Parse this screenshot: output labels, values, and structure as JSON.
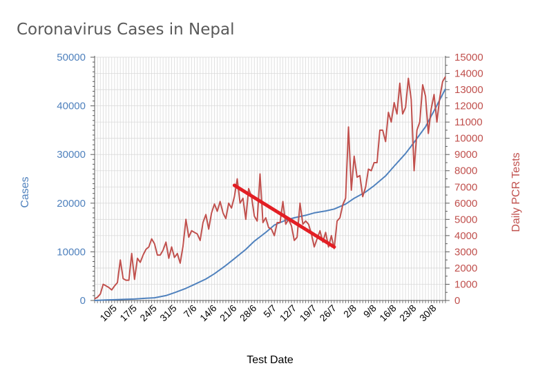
{
  "chart_data": {
    "type": "line",
    "title": "Coronavirus Cases in Nepal",
    "xlabel": "Test Date",
    "ylabel": "Cases",
    "y2label": "Daily PCR Tests",
    "ylim": [
      0,
      50000
    ],
    "y2lim": [
      0,
      15000
    ],
    "yticks": [
      "0",
      "10000",
      "20000",
      "30000",
      "40000",
      "50000"
    ],
    "y2ticks": [
      "0",
      "1000",
      "2000",
      "3000",
      "4000",
      "5000",
      "6000",
      "7000",
      "8000",
      "9000",
      "10000",
      "11000",
      "12000",
      "13000",
      "14000",
      "15000"
    ],
    "x_range": [
      "2020-05-03",
      "2020-09-03"
    ],
    "x_tick_labels": [
      {
        "date": "2020-05-10",
        "label": "10/5"
      },
      {
        "date": "2020-05-17",
        "label": "17/5"
      },
      {
        "date": "2020-05-24",
        "label": "24/5"
      },
      {
        "date": "2020-05-31",
        "label": "31/5"
      },
      {
        "date": "2020-06-07",
        "label": "7/6"
      },
      {
        "date": "2020-06-14",
        "label": "14/6"
      },
      {
        "date": "2020-06-21",
        "label": "21/6"
      },
      {
        "date": "2020-06-28",
        "label": "28/6"
      },
      {
        "date": "2020-07-05",
        "label": "5/7"
      },
      {
        "date": "2020-07-12",
        "label": "12/7"
      },
      {
        "date": "2020-07-19",
        "label": "19/7"
      },
      {
        "date": "2020-07-26",
        "label": "26/7"
      },
      {
        "date": "2020-08-02",
        "label": "2/8"
      },
      {
        "date": "2020-08-09",
        "label": "9/8"
      },
      {
        "date": "2020-08-16",
        "label": "16/8"
      },
      {
        "date": "2020-08-23",
        "label": "23/8"
      },
      {
        "date": "2020-08-30",
        "label": "30/8"
      }
    ],
    "grid": true,
    "colors": {
      "cases": "#4f81bd",
      "tests": "#c0504d",
      "trend": "#e31e24",
      "grid": "#d9d9d9",
      "axis": "#595959"
    },
    "series": [
      {
        "axis": "left",
        "color": "#4f81bd",
        "points": [
          [
            "2020-05-03",
            0
          ],
          [
            "2020-05-07",
            100
          ],
          [
            "2020-05-10",
            150
          ],
          [
            "2020-05-14",
            250
          ],
          [
            "2020-05-17",
            300
          ],
          [
            "2020-05-21",
            450
          ],
          [
            "2020-05-24",
            550
          ],
          [
            "2020-05-28",
            1000
          ],
          [
            "2020-05-31",
            1600
          ],
          [
            "2020-06-04",
            2500
          ],
          [
            "2020-06-07",
            3300
          ],
          [
            "2020-06-11",
            4400
          ],
          [
            "2020-06-14",
            5500
          ],
          [
            "2020-06-18",
            7200
          ],
          [
            "2020-06-21",
            8600
          ],
          [
            "2020-06-25",
            10500
          ],
          [
            "2020-06-28",
            12200
          ],
          [
            "2020-07-02",
            14000
          ],
          [
            "2020-07-05",
            15500
          ],
          [
            "2020-07-09",
            16500
          ],
          [
            "2020-07-12",
            17000
          ],
          [
            "2020-07-16",
            17500
          ],
          [
            "2020-07-19",
            18000
          ],
          [
            "2020-07-23",
            18400
          ],
          [
            "2020-07-26",
            18800
          ],
          [
            "2020-07-30",
            19800
          ],
          [
            "2020-08-02",
            21000
          ],
          [
            "2020-08-06",
            22300
          ],
          [
            "2020-08-09",
            23600
          ],
          [
            "2020-08-13",
            25600
          ],
          [
            "2020-08-16",
            27600
          ],
          [
            "2020-08-20",
            30200
          ],
          [
            "2020-08-23",
            32500
          ],
          [
            "2020-08-27",
            35700
          ],
          [
            "2020-08-30",
            39000
          ],
          [
            "2020-09-03",
            43500
          ]
        ]
      },
      {
        "axis": "right",
        "color": "#c0504d",
        "points": [
          [
            "2020-05-03",
            100
          ],
          [
            "2020-05-04",
            200
          ],
          [
            "2020-05-05",
            400
          ],
          [
            "2020-05-06",
            1000
          ],
          [
            "2020-05-07",
            900
          ],
          [
            "2020-05-08",
            800
          ],
          [
            "2020-05-09",
            650
          ],
          [
            "2020-05-10",
            900
          ],
          [
            "2020-05-11",
            1100
          ],
          [
            "2020-05-12",
            2500
          ],
          [
            "2020-05-13",
            1350
          ],
          [
            "2020-05-14",
            1250
          ],
          [
            "2020-05-15",
            1250
          ],
          [
            "2020-05-16",
            2900
          ],
          [
            "2020-05-17",
            1300
          ],
          [
            "2020-05-18",
            2600
          ],
          [
            "2020-05-19",
            2350
          ],
          [
            "2020-05-20",
            2800
          ],
          [
            "2020-05-21",
            3150
          ],
          [
            "2020-05-22",
            3300
          ],
          [
            "2020-05-23",
            3800
          ],
          [
            "2020-05-24",
            3500
          ],
          [
            "2020-05-25",
            2800
          ],
          [
            "2020-05-26",
            2800
          ],
          [
            "2020-05-27",
            3100
          ],
          [
            "2020-05-28",
            3600
          ],
          [
            "2020-05-29",
            2600
          ],
          [
            "2020-05-30",
            3300
          ],
          [
            "2020-05-31",
            2650
          ],
          [
            "2020-06-01",
            2900
          ],
          [
            "2020-06-02",
            2300
          ],
          [
            "2020-06-03",
            3350
          ],
          [
            "2020-06-04",
            5000
          ],
          [
            "2020-06-05",
            3900
          ],
          [
            "2020-06-06",
            4300
          ],
          [
            "2020-06-07",
            4200
          ],
          [
            "2020-06-08",
            4100
          ],
          [
            "2020-06-09",
            3700
          ],
          [
            "2020-06-10",
            4800
          ],
          [
            "2020-06-11",
            5300
          ],
          [
            "2020-06-12",
            4400
          ],
          [
            "2020-06-13",
            5400
          ],
          [
            "2020-06-14",
            5950
          ],
          [
            "2020-06-15",
            5500
          ],
          [
            "2020-06-16",
            6100
          ],
          [
            "2020-06-17",
            5400
          ],
          [
            "2020-06-18",
            5050
          ],
          [
            "2020-06-19",
            6000
          ],
          [
            "2020-06-20",
            5700
          ],
          [
            "2020-06-21",
            6400
          ],
          [
            "2020-06-22",
            7500
          ],
          [
            "2020-06-23",
            6000
          ],
          [
            "2020-06-24",
            6300
          ],
          [
            "2020-06-25",
            5000
          ],
          [
            "2020-06-26",
            6900
          ],
          [
            "2020-06-27",
            6400
          ],
          [
            "2020-06-28",
            5200
          ],
          [
            "2020-06-29",
            4900
          ],
          [
            "2020-06-30",
            7800
          ],
          [
            "2020-07-01",
            4800
          ],
          [
            "2020-07-02",
            5100
          ],
          [
            "2020-07-03",
            4500
          ],
          [
            "2020-07-04",
            4400
          ],
          [
            "2020-07-05",
            4000
          ],
          [
            "2020-07-06",
            4800
          ],
          [
            "2020-07-07",
            4800
          ],
          [
            "2020-07-08",
            6100
          ],
          [
            "2020-07-09",
            4700
          ],
          [
            "2020-07-10",
            5000
          ],
          [
            "2020-07-11",
            4600
          ],
          [
            "2020-07-12",
            3700
          ],
          [
            "2020-07-13",
            3900
          ],
          [
            "2020-07-14",
            6000
          ],
          [
            "2020-07-15",
            4700
          ],
          [
            "2020-07-16",
            4900
          ],
          [
            "2020-07-17",
            4700
          ],
          [
            "2020-07-18",
            4100
          ],
          [
            "2020-07-19",
            3300
          ],
          [
            "2020-07-20",
            3800
          ],
          [
            "2020-07-21",
            4300
          ],
          [
            "2020-07-22",
            3600
          ],
          [
            "2020-07-23",
            4200
          ],
          [
            "2020-07-24",
            3300
          ],
          [
            "2020-07-25",
            4000
          ],
          [
            "2020-07-26",
            3200
          ],
          [
            "2020-07-27",
            4900
          ],
          [
            "2020-07-28",
            5100
          ],
          [
            "2020-07-29",
            5900
          ],
          [
            "2020-07-30",
            6300
          ],
          [
            "2020-07-31",
            10700
          ],
          [
            "2020-08-01",
            6800
          ],
          [
            "2020-08-02",
            8900
          ],
          [
            "2020-08-03",
            7600
          ],
          [
            "2020-08-04",
            7700
          ],
          [
            "2020-08-05",
            6400
          ],
          [
            "2020-08-06",
            7000
          ],
          [
            "2020-08-07",
            8100
          ],
          [
            "2020-08-08",
            8000
          ],
          [
            "2020-08-09",
            8500
          ],
          [
            "2020-08-10",
            8500
          ],
          [
            "2020-08-11",
            10500
          ],
          [
            "2020-08-12",
            10500
          ],
          [
            "2020-08-13",
            9800
          ],
          [
            "2020-08-14",
            11600
          ],
          [
            "2020-08-15",
            11000
          ],
          [
            "2020-08-16",
            12200
          ],
          [
            "2020-08-17",
            11500
          ],
          [
            "2020-08-18",
            13400
          ],
          [
            "2020-08-19",
            11500
          ],
          [
            "2020-08-20",
            11900
          ],
          [
            "2020-08-21",
            13700
          ],
          [
            "2020-08-22",
            12400
          ],
          [
            "2020-08-23",
            8000
          ],
          [
            "2020-08-24",
            10500
          ],
          [
            "2020-08-25",
            11000
          ],
          [
            "2020-08-26",
            13300
          ],
          [
            "2020-08-27",
            12600
          ],
          [
            "2020-08-28",
            10300
          ],
          [
            "2020-08-29",
            11800
          ],
          [
            "2020-08-30",
            12700
          ],
          [
            "2020-08-31",
            11000
          ],
          [
            "2020-09-01",
            12500
          ],
          [
            "2020-09-02",
            13500
          ],
          [
            "2020-09-03",
            13800
          ]
        ]
      }
    ],
    "trend_line": {
      "axis": "right",
      "color": "#e31e24",
      "points": [
        [
          "2020-06-21",
          7100
        ],
        [
          "2020-07-26",
          3300
        ]
      ]
    }
  }
}
